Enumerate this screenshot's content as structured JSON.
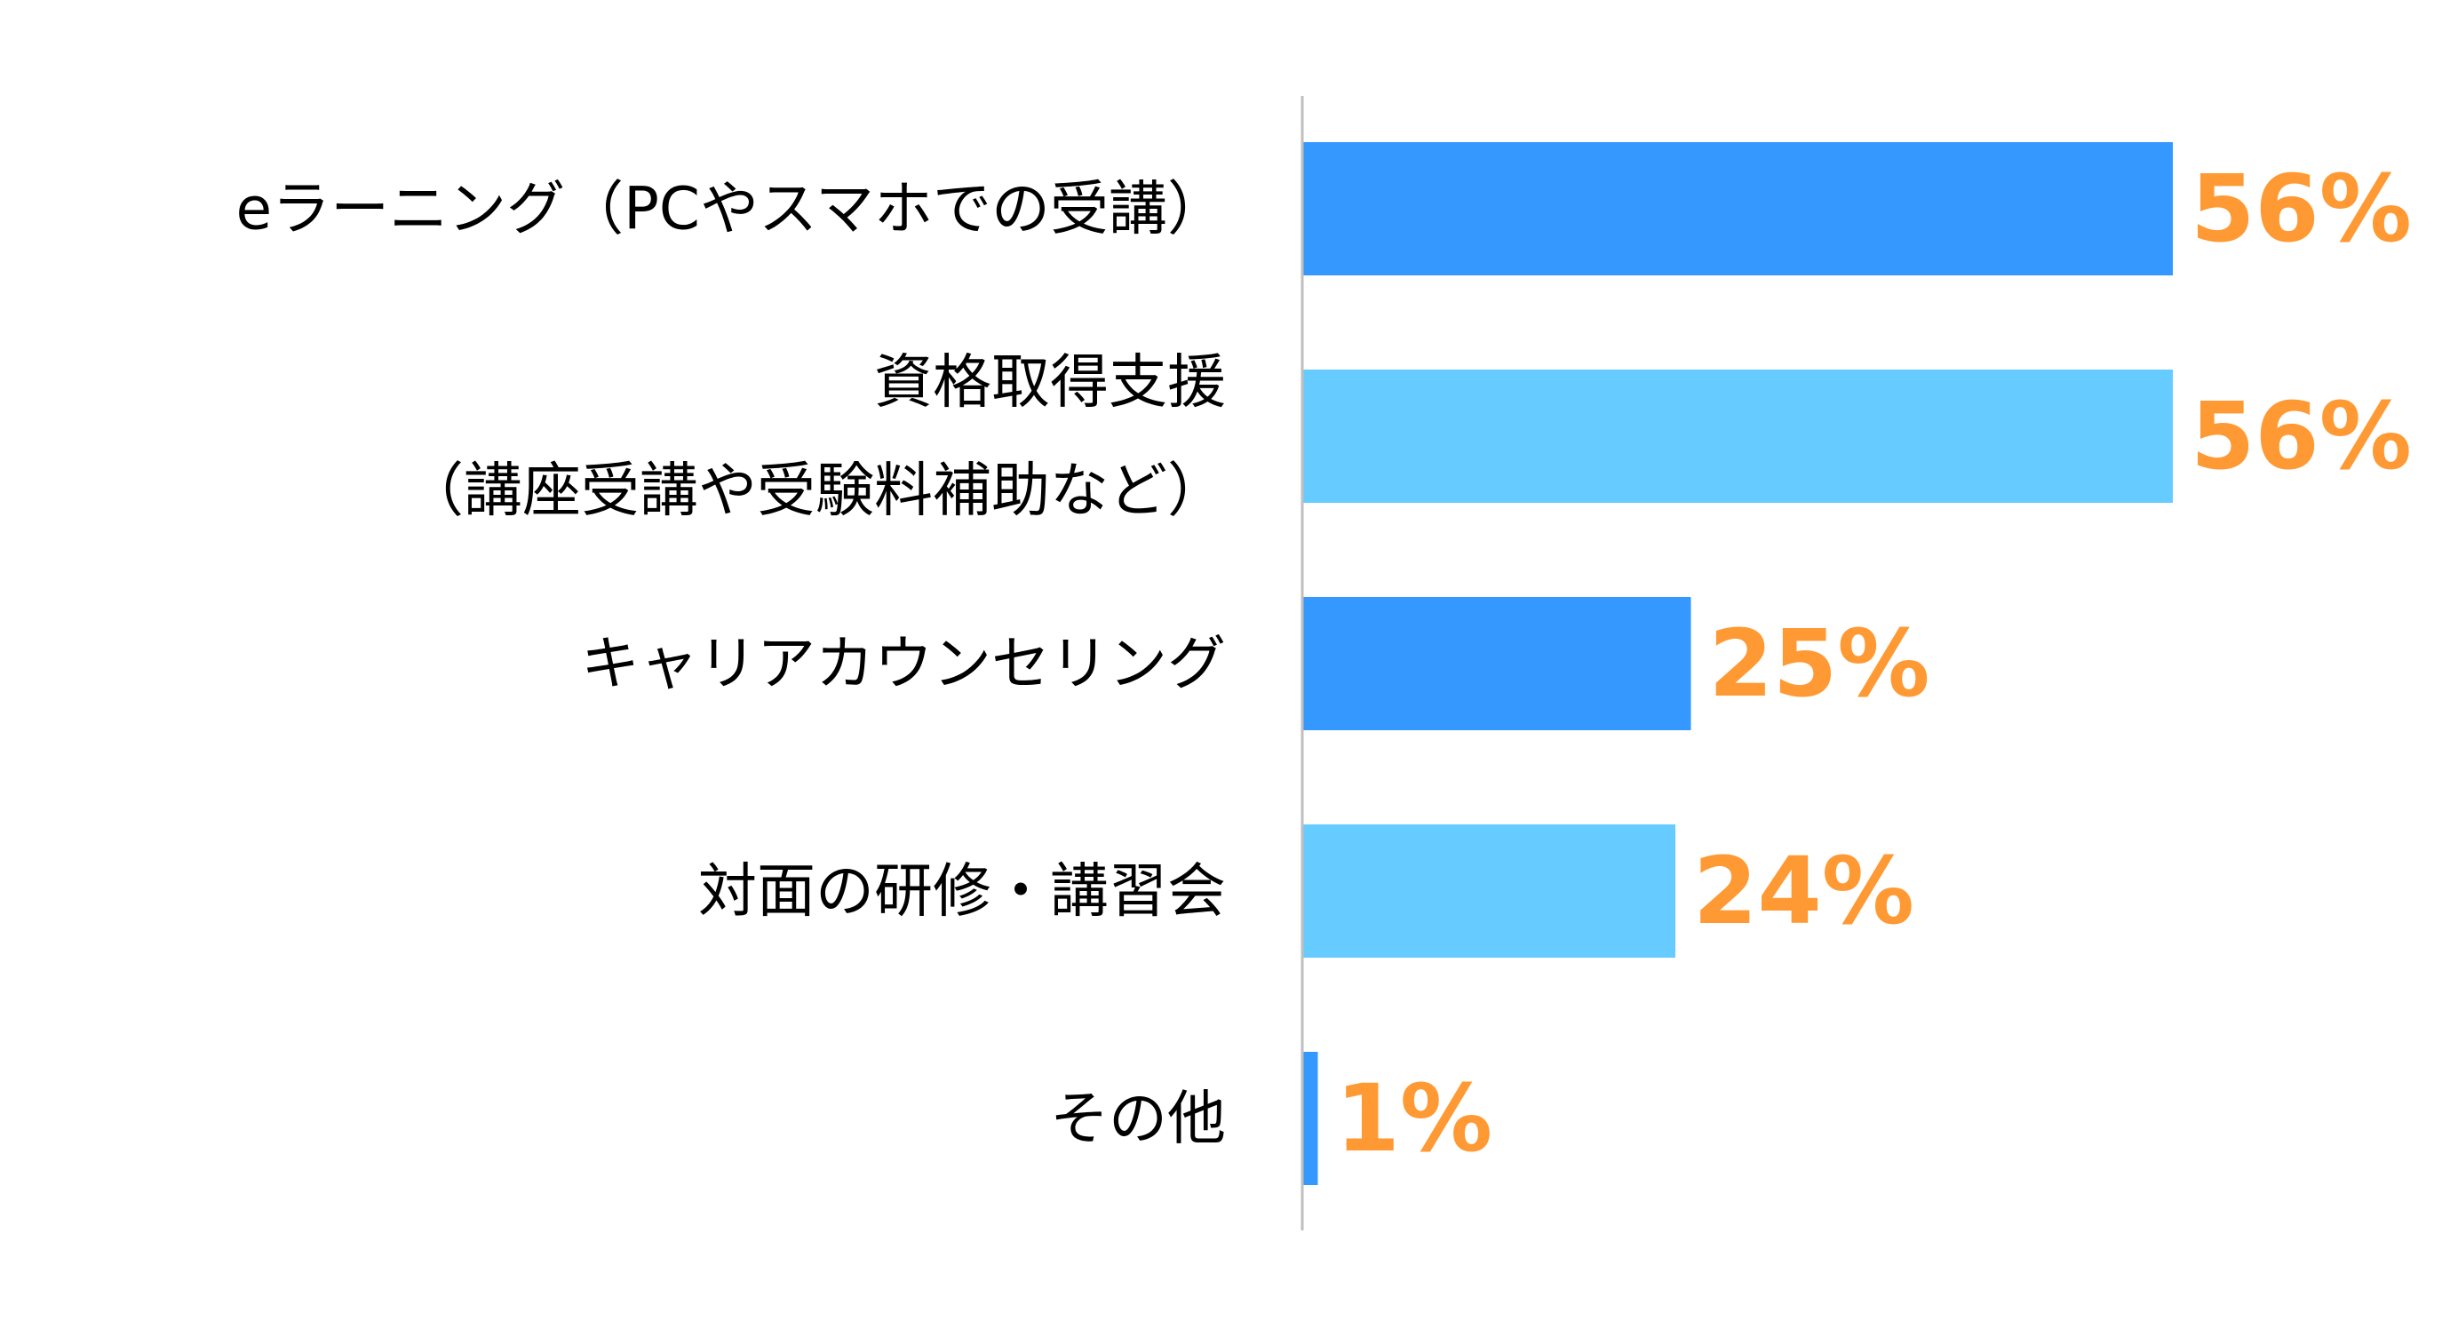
{
  "chart_data": {
    "type": "bar",
    "orientation": "horizontal",
    "categories": [
      [
        "eラーニング（PCやスマホでの受講）"
      ],
      [
        "資格取得支援",
        "（講座受講や受験料補助など）"
      ],
      [
        "キャリアカウンセリング"
      ],
      [
        "対面の研修・講習会"
      ],
      [
        "その他"
      ]
    ],
    "values": [
      56,
      56,
      25,
      24,
      1
    ],
    "value_labels": [
      "56%",
      "56%",
      "25%",
      "24%",
      "1%"
    ],
    "unit": "%",
    "bar_colors": [
      "#3598FE",
      "#66CCFF",
      "#3598FE",
      "#66CCFF",
      "#3598FE"
    ],
    "label_color": "#FF9933",
    "axis_color": "#BFBFBF",
    "xlim": [
      0,
      56
    ],
    "grid": false,
    "legend": "none",
    "title": "",
    "xlabel": "",
    "ylabel": ""
  }
}
